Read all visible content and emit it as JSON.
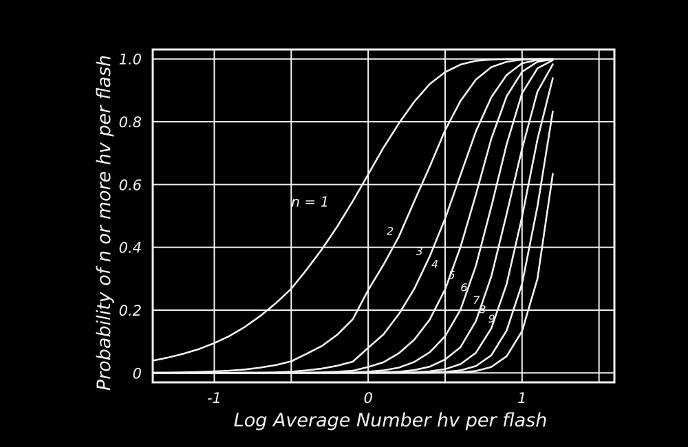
{
  "chart_data": {
    "type": "line",
    "xlabel": "Log Average Number hv per flash",
    "ylabel": "Probability of n or more hv per flash",
    "xlim": [
      -1.4,
      1.6
    ],
    "ylim": [
      -0.03,
      1.03
    ],
    "x_ticks": [
      -1,
      0,
      1
    ],
    "x_tick_labels": [
      "-1",
      "0",
      "1"
    ],
    "y_ticks": [
      0,
      0.2,
      0.4,
      0.6,
      0.8,
      1.0
    ],
    "y_tick_labels": [
      "0",
      "0.2",
      "0.4",
      "0.6",
      "0.8",
      "1.0"
    ],
    "grid": true,
    "legend": "none",
    "background": "#000000",
    "foreground": "#f2f2f2",
    "x": [
      -1.4,
      -1.3,
      -1.2,
      -1.1,
      -1.0,
      -0.9,
      -0.8,
      -0.7,
      -0.6,
      -0.5,
      -0.4,
      -0.3,
      -0.2,
      -0.1,
      0.0,
      0.1,
      0.2,
      0.3,
      0.4,
      0.5,
      0.6,
      0.7,
      0.8,
      0.9,
      1.0,
      1.1,
      1.2
    ],
    "series": [
      {
        "name": "n = 1",
        "label": "n = 1",
        "values": [
          0.039,
          0.049,
          0.061,
          0.076,
          0.095,
          0.118,
          0.147,
          0.182,
          0.222,
          0.268,
          0.329,
          0.394,
          0.467,
          0.547,
          0.632,
          0.718,
          0.795,
          0.864,
          0.92,
          0.958,
          0.982,
          0.994,
          0.998,
          1.0,
          1.0,
          1.0,
          1.0
        ]
      },
      {
        "name": "2",
        "label": "2",
        "values": [
          0.001,
          0.001,
          0.002,
          0.003,
          0.005,
          0.007,
          0.011,
          0.017,
          0.025,
          0.037,
          0.061,
          0.086,
          0.122,
          0.171,
          0.264,
          0.345,
          0.435,
          0.547,
          0.657,
          0.773,
          0.866,
          0.934,
          0.974,
          0.991,
          0.998,
          1.0,
          1.0
        ]
      },
      {
        "name": "3",
        "label": "3",
        "values": [
          0.0,
          0.0,
          0.0,
          0.0,
          0.0,
          0.0,
          0.001,
          0.001,
          0.002,
          0.004,
          0.008,
          0.014,
          0.023,
          0.036,
          0.08,
          0.123,
          0.188,
          0.268,
          0.371,
          0.492,
          0.63,
          0.769,
          0.878,
          0.949,
          0.986,
          0.997,
          1.0
        ]
      },
      {
        "name": "4",
        "label": "4",
        "values": [
          0.0,
          0.0,
          0.0,
          0.0,
          0.0,
          0.0,
          0.0,
          0.0,
          0.0,
          0.0,
          0.001,
          0.002,
          0.004,
          0.007,
          0.019,
          0.034,
          0.063,
          0.106,
          0.17,
          0.266,
          0.401,
          0.568,
          0.746,
          0.881,
          0.959,
          0.991,
          0.999
        ]
      },
      {
        "name": "5",
        "label": "5",
        "values": [
          0.0,
          0.0,
          0.0,
          0.0,
          0.0,
          0.0,
          0.0,
          0.0,
          0.0,
          0.0,
          0.0,
          0.0,
          0.0,
          0.001,
          0.004,
          0.008,
          0.017,
          0.035,
          0.066,
          0.117,
          0.201,
          0.341,
          0.529,
          0.728,
          0.891,
          0.97,
          0.996
        ]
      },
      {
        "name": "6",
        "label": "6",
        "values": [
          0.0,
          0.0,
          0.0,
          0.0,
          0.0,
          0.0,
          0.0,
          0.0,
          0.0,
          0.0,
          0.0,
          0.0,
          0.0,
          0.0,
          0.001,
          0.002,
          0.004,
          0.009,
          0.02,
          0.043,
          0.082,
          0.165,
          0.307,
          0.506,
          0.714,
          0.896,
          0.983
        ]
      },
      {
        "name": "7",
        "label": "7",
        "values": [
          0.0,
          0.0,
          0.0,
          0.0,
          0.0,
          0.0,
          0.0,
          0.0,
          0.0,
          0.0,
          0.0,
          0.0,
          0.0,
          0.0,
          0.0,
          0.0,
          0.001,
          0.002,
          0.005,
          0.012,
          0.028,
          0.064,
          0.142,
          0.283,
          0.497,
          0.744,
          0.939
        ]
      },
      {
        "name": "8",
        "label": "8",
        "values": [
          0.0,
          0.0,
          0.0,
          0.0,
          0.0,
          0.0,
          0.0,
          0.0,
          0.0,
          0.0,
          0.0,
          0.0,
          0.0,
          0.0,
          0.0,
          0.0,
          0.0,
          0.0,
          0.001,
          0.003,
          0.008,
          0.022,
          0.056,
          0.135,
          0.284,
          0.53,
          0.833
        ]
      },
      {
        "name": "9",
        "label": "9",
        "values": [
          0.0,
          0.0,
          0.0,
          0.0,
          0.0,
          0.0,
          0.0,
          0.0,
          0.0,
          0.0,
          0.0,
          0.0,
          0.0,
          0.0,
          0.0,
          0.0,
          0.0,
          0.0,
          0.0,
          0.001,
          0.002,
          0.006,
          0.019,
          0.053,
          0.133,
          0.3,
          0.634
        ]
      }
    ]
  }
}
